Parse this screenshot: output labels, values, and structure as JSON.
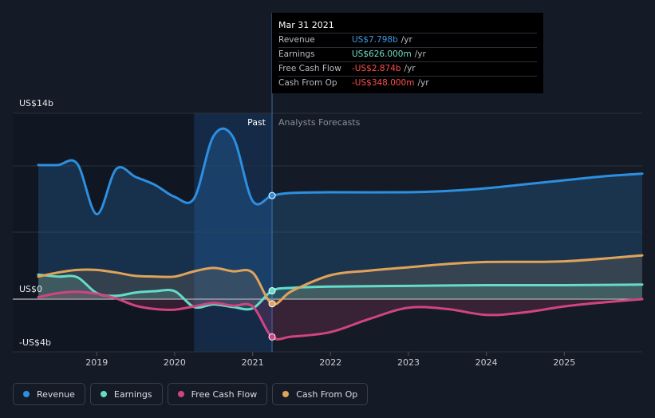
{
  "tooltip": {
    "date": "Mar 31 2021",
    "rows": [
      {
        "name": "Revenue",
        "value": "US$7.798b",
        "unit": "/yr",
        "color": "#3b9ae8"
      },
      {
        "name": "Earnings",
        "value": "US$626.000m",
        "unit": "/yr",
        "color": "#6fe0c9"
      },
      {
        "name": "Free Cash Flow",
        "value": "-US$2.874b",
        "unit": "/yr",
        "color": "#ff4d4d"
      },
      {
        "name": "Cash From Op",
        "value": "-US$348.000m",
        "unit": "/yr",
        "color": "#ff4d4d"
      }
    ]
  },
  "regions": {
    "past": "Past",
    "forecast": "Analysts Forecasts"
  },
  "legend": [
    {
      "name": "Revenue",
      "color": "#2d8fe0"
    },
    {
      "name": "Earnings",
      "color": "#63dcc8"
    },
    {
      "name": "Free Cash Flow",
      "color": "#d0457f"
    },
    {
      "name": "Cash From Op",
      "color": "#e0a35a"
    }
  ],
  "chart_data": {
    "type": "line",
    "x_unit": "year",
    "y_unit": "US$ billions",
    "y_tick_labels": [
      "US$14b",
      "US$0",
      "-US$4b"
    ],
    "y_ticks": [
      14,
      0,
      -4
    ],
    "ylim": [
      -4,
      14
    ],
    "xlim": [
      2018.25,
      2026.0
    ],
    "x_tick_labels": [
      "2019",
      "2020",
      "2021",
      "2022",
      "2023",
      "2024",
      "2025"
    ],
    "x_ticks": [
      2019,
      2020,
      2021,
      2022,
      2023,
      2024,
      2025
    ],
    "past_end": 2021.25,
    "highlight_band": [
      2020.25,
      2021.25
    ],
    "grid": true,
    "series": [
      {
        "name": "Revenue",
        "color": "#2d8fe0",
        "points": [
          [
            2018.25,
            10.1
          ],
          [
            2018.5,
            10.1
          ],
          [
            2018.75,
            10.2
          ],
          [
            2019.0,
            6.4
          ],
          [
            2019.25,
            9.8
          ],
          [
            2019.5,
            9.2
          ],
          [
            2019.75,
            8.6
          ],
          [
            2020.0,
            7.7
          ],
          [
            2020.25,
            7.6
          ],
          [
            2020.5,
            12.3
          ],
          [
            2020.75,
            12.2
          ],
          [
            2021.0,
            7.4
          ],
          [
            2021.25,
            7.8
          ],
          [
            2021.5,
            8.0
          ],
          [
            2022.0,
            8.05
          ],
          [
            2023.0,
            8.05
          ],
          [
            2023.5,
            8.15
          ],
          [
            2024.0,
            8.35
          ],
          [
            2024.5,
            8.65
          ],
          [
            2025.0,
            8.95
          ],
          [
            2025.5,
            9.25
          ],
          [
            2026.0,
            9.45
          ]
        ]
      },
      {
        "name": "Earnings",
        "color": "#63dcc8",
        "points": [
          [
            2018.25,
            1.85
          ],
          [
            2018.5,
            1.7
          ],
          [
            2018.75,
            1.65
          ],
          [
            2019.0,
            0.45
          ],
          [
            2019.25,
            0.25
          ],
          [
            2019.5,
            0.5
          ],
          [
            2019.75,
            0.6
          ],
          [
            2020.0,
            0.6
          ],
          [
            2020.25,
            -0.6
          ],
          [
            2020.5,
            -0.4
          ],
          [
            2020.75,
            -0.6
          ],
          [
            2021.0,
            -0.7
          ],
          [
            2021.25,
            0.63
          ],
          [
            2021.5,
            0.85
          ],
          [
            2022.0,
            0.95
          ],
          [
            2023.0,
            1.0
          ],
          [
            2024.0,
            1.05
          ],
          [
            2025.0,
            1.05
          ],
          [
            2026.0,
            1.1
          ]
        ]
      },
      {
        "name": "Free Cash Flow",
        "color": "#d0457f",
        "points": [
          [
            2018.25,
            0.15
          ],
          [
            2018.5,
            0.45
          ],
          [
            2018.75,
            0.55
          ],
          [
            2019.0,
            0.4
          ],
          [
            2019.25,
            0.05
          ],
          [
            2019.5,
            -0.5
          ],
          [
            2019.75,
            -0.75
          ],
          [
            2020.0,
            -0.8
          ],
          [
            2020.25,
            -0.55
          ],
          [
            2020.5,
            -0.3
          ],
          [
            2020.75,
            -0.5
          ],
          [
            2021.0,
            -0.55
          ],
          [
            2021.25,
            -2.87
          ],
          [
            2021.5,
            -2.85
          ],
          [
            2022.0,
            -2.5
          ],
          [
            2022.5,
            -1.5
          ],
          [
            2023.0,
            -0.65
          ],
          [
            2023.5,
            -0.75
          ],
          [
            2024.0,
            -1.2
          ],
          [
            2024.5,
            -1.0
          ],
          [
            2025.0,
            -0.55
          ],
          [
            2025.5,
            -0.25
          ],
          [
            2026.0,
            0.0
          ]
        ]
      },
      {
        "name": "Cash From Op",
        "color": "#e0a35a",
        "points": [
          [
            2018.25,
            1.7
          ],
          [
            2018.5,
            2.0
          ],
          [
            2018.75,
            2.2
          ],
          [
            2019.0,
            2.2
          ],
          [
            2019.25,
            2.0
          ],
          [
            2019.5,
            1.75
          ],
          [
            2019.75,
            1.7
          ],
          [
            2020.0,
            1.7
          ],
          [
            2020.25,
            2.1
          ],
          [
            2020.5,
            2.35
          ],
          [
            2020.75,
            2.1
          ],
          [
            2021.0,
            2.0
          ],
          [
            2021.25,
            -0.35
          ],
          [
            2021.5,
            0.6
          ],
          [
            2022.0,
            1.8
          ],
          [
            2022.5,
            2.15
          ],
          [
            2023.0,
            2.4
          ],
          [
            2023.5,
            2.65
          ],
          [
            2024.0,
            2.8
          ],
          [
            2025.0,
            2.85
          ],
          [
            2026.0,
            3.3
          ]
        ]
      }
    ]
  }
}
